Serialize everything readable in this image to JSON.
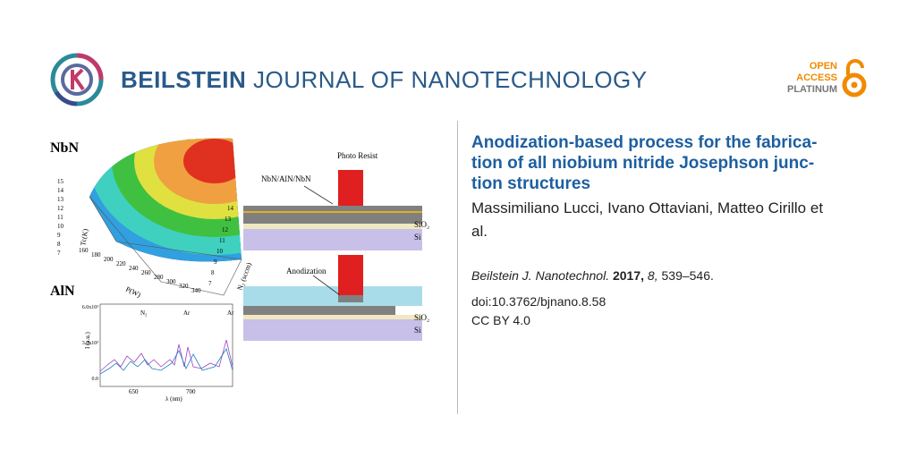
{
  "header": {
    "journal_bold": "BEILSTEIN",
    "journal_rest": "JOURNAL OF NANOTECHNOLOGY",
    "access": [
      "OPEN",
      "ACCESS",
      "PLATINUM"
    ]
  },
  "figure": {
    "surface": {
      "label": "NbN",
      "z_axis": "Tc(K)",
      "x_axis": "P(W)",
      "y_axis": "N₂ (sccm)",
      "z_ticks": [
        "15",
        "14",
        "13",
        "12",
        "11",
        "10",
        "9",
        "8",
        "7"
      ],
      "x_ticks": [
        "160",
        "180",
        "200",
        "220",
        "240",
        "260",
        "280",
        "300",
        "320",
        "340"
      ],
      "y_ticks": [
        "14",
        "13",
        "12",
        "11",
        "10",
        "9",
        "8",
        "7"
      ]
    },
    "spectrum": {
      "label": "AlN",
      "y_axis": "I (a.u.)",
      "x_axis": "λ (nm)",
      "y_ticks": [
        "6.0x10³",
        "3.0x10³",
        "0.0"
      ],
      "x_ticks": [
        "650",
        "700"
      ],
      "peaks": [
        "N₂",
        "Ar",
        "Ar"
      ]
    },
    "process": {
      "top_resist": "Photo Resist",
      "top_stack": "NbN/AlN/NbN",
      "top_oxide": "SiO₂",
      "top_substrate": "Si",
      "bottom_step": "Anodization",
      "bottom_oxide": "SiO₂",
      "bottom_substrate": "Si"
    }
  },
  "article": {
    "title_lines": [
      "Anodization-based process for the fabrica-",
      "tion of all niobium nitride Josephson junc-",
      "tion structures"
    ],
    "author_lines": [
      "Massimiliano Lucci, Ivano Ottaviani, Matteo Cirillo et",
      "al."
    ],
    "citation": {
      "journal": "Beilstein J. Nanotechnol.",
      "year": "2017,",
      "volume": "8,",
      "pages": "539–546."
    },
    "doi": "doi:10.3762/bjnano.8.58",
    "license": "CC BY 4.0"
  }
}
